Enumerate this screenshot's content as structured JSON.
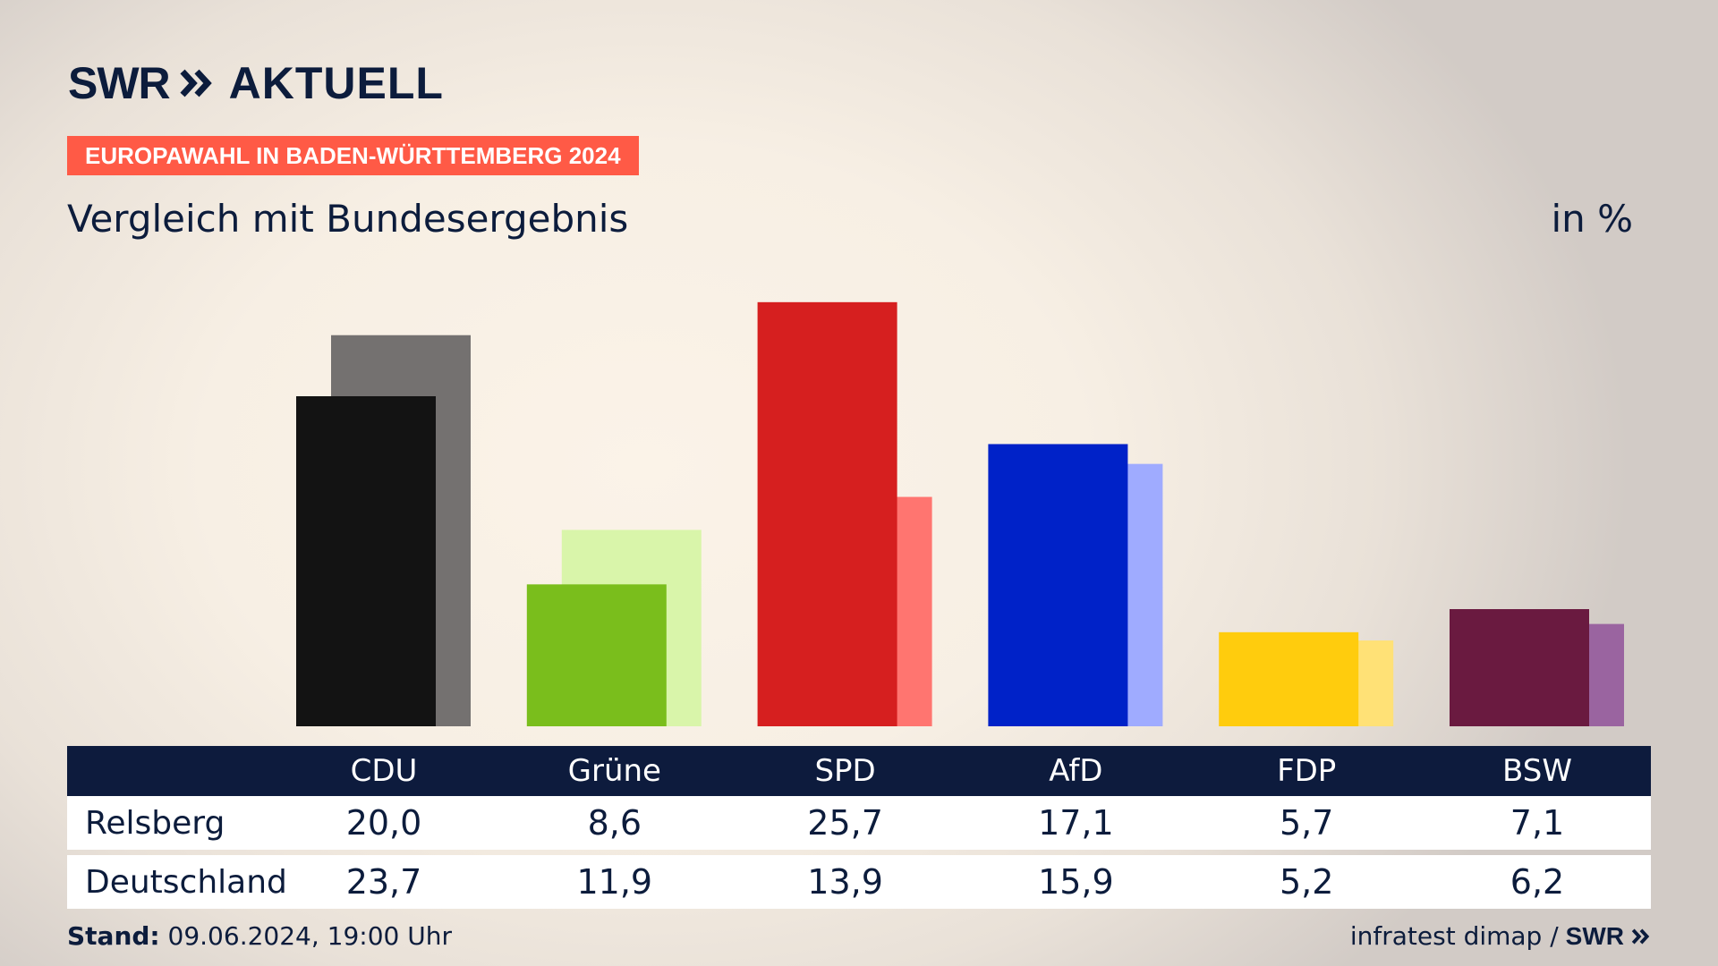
{
  "header": {
    "logo_brand": "SWR",
    "logo_product": "AKTUELL",
    "tagline": "EUROPAWAHL IN BADEN-WÜRTTEMBERG 2024",
    "title": "Vergleich mit Bundesergebnis",
    "unit": "in %"
  },
  "table": {
    "rows": [
      {
        "label": "Relsberg",
        "values": [
          "20,0",
          "8,6",
          "25,7",
          "17,1",
          "5,7",
          "7,1"
        ]
      },
      {
        "label": "Deutschland",
        "values": [
          "23,7",
          "11,9",
          "13,9",
          "15,9",
          "5,2",
          "6,2"
        ]
      }
    ]
  },
  "footer": {
    "stand_label": "Stand:",
    "stand_value": "09.06.2024, 19:00 Uhr",
    "source": "infratest dimap /",
    "source_brand": "SWR"
  },
  "colors": {
    "primary": [
      "#131313",
      "#7abe1c",
      "#d61f1f",
      "#0022c8",
      "#ffcc0d",
      "#6a1a40"
    ],
    "secondary": [
      "#747170",
      "#d9f5aa",
      "#ff7570",
      "#9fabff",
      "#ffe176",
      "#9a64a0"
    ],
    "accent": "#ff5a46",
    "navy": "#0d1b3d"
  },
  "chart_data": {
    "type": "bar",
    "categories": [
      "CDU",
      "Grüne",
      "SPD",
      "AfD",
      "FDP",
      "BSW"
    ],
    "series": [
      {
        "name": "Relsberg",
        "values": [
          20.0,
          8.6,
          25.7,
          17.1,
          5.7,
          7.1
        ]
      },
      {
        "name": "Deutschland",
        "values": [
          23.7,
          11.9,
          13.9,
          15.9,
          5.2,
          6.2
        ]
      }
    ],
    "title": "Vergleich mit Bundesergebnis",
    "ylabel": "in %",
    "ylim": [
      0,
      27
    ]
  }
}
